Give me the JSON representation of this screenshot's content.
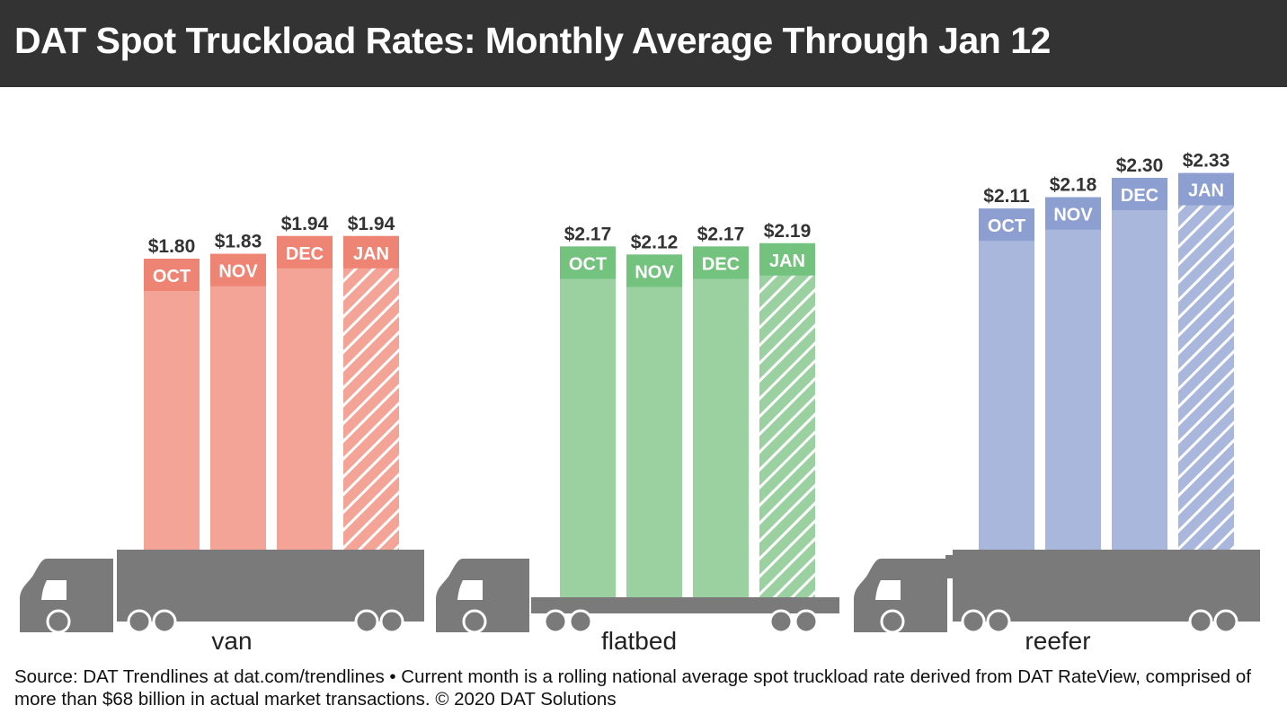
{
  "title": "DAT Spot Truckload Rates: Monthly Average Through Jan 12",
  "footnote": "Source: DAT Trendlines at dat.com/trendlines • Current month is a rolling national average spot truckload rate derived from DAT RateView, comprised of more than $68 billion in actual market transactions. © 2020 DAT Solutions",
  "chart_data": {
    "type": "bar",
    "categories": [
      "OCT",
      "NOV",
      "DEC",
      "JAN"
    ],
    "value_prefix": "$",
    "groups": [
      {
        "name": "van",
        "trailer": "van",
        "color": "#f4a497",
        "label_color": "#ee8473",
        "values": [
          1.8,
          1.83,
          1.94,
          1.94
        ],
        "labels": [
          "$1.80",
          "$1.83",
          "$1.94",
          "$1.94"
        ]
      },
      {
        "name": "flatbed",
        "trailer": "flatbed",
        "color": "#9bd1a1",
        "label_color": "#73c27e",
        "values": [
          2.17,
          2.12,
          2.17,
          2.19
        ],
        "labels": [
          "$2.17",
          "$2.12",
          "$2.17",
          "$2.19"
        ]
      },
      {
        "name": "reefer",
        "trailer": "reefer",
        "color": "#a8b7db",
        "label_color": "#8c9fd0",
        "values": [
          2.11,
          2.18,
          2.3,
          2.33
        ],
        "labels": [
          "$2.11",
          "$2.18",
          "$2.30",
          "$2.33"
        ]
      }
    ],
    "hatched_category": "JAN",
    "truck_color": "#7a7a7a"
  }
}
